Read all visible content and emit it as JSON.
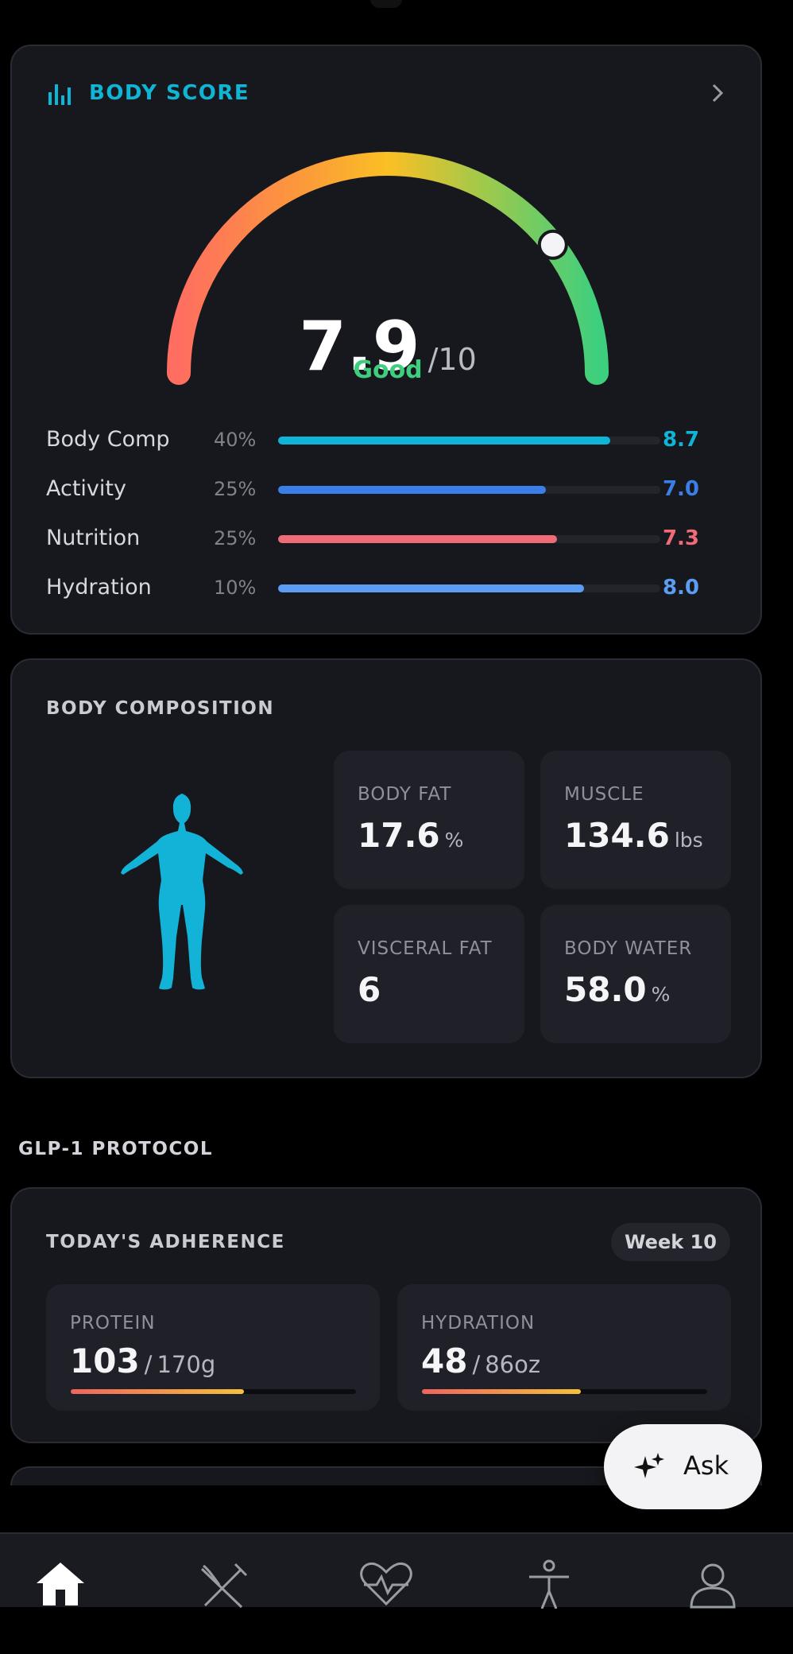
{
  "body_score": {
    "title": "BODY SCORE",
    "score": 7.9,
    "scale_sep": "/",
    "scale_max": 10,
    "rating": "Good",
    "metrics": [
      {
        "name": "Body Comp",
        "weight": "40%",
        "score": "8.7",
        "color": "#0fb5d6"
      },
      {
        "name": "Activity",
        "weight": "25%",
        "score": "7.0",
        "color": "#3a7ee8"
      },
      {
        "name": "Nutrition",
        "weight": "25%",
        "score": "7.3",
        "color": "#f06b78"
      },
      {
        "name": "Hydration",
        "weight": "10%",
        "score": "8.0",
        "color": "#5a9df2"
      }
    ]
  },
  "body_composition": {
    "title": "BODY COMPOSITION",
    "tiles": [
      {
        "label": "BODY FAT",
        "value": "17.6",
        "unit": "%"
      },
      {
        "label": "MUSCLE",
        "value": "134.6",
        "unit": "lbs"
      },
      {
        "label": "VISCERAL FAT",
        "value": "6"
      },
      {
        "label": "BODY WATER",
        "value": "58.0",
        "unit": "%"
      }
    ]
  },
  "glp1": {
    "section_title": "GLP-1 PROTOCOL",
    "card_title": "TODAY'S ADHERENCE",
    "badge": "Week 10",
    "items": [
      {
        "label": "PROTEIN",
        "value": 103,
        "separator": "/",
        "goal": 170,
        "unit": "g"
      },
      {
        "label": "HYDRATION",
        "value": 48,
        "separator": "/",
        "goal": 86,
        "unit": "oz"
      }
    ]
  },
  "ask_button": "Ask"
}
